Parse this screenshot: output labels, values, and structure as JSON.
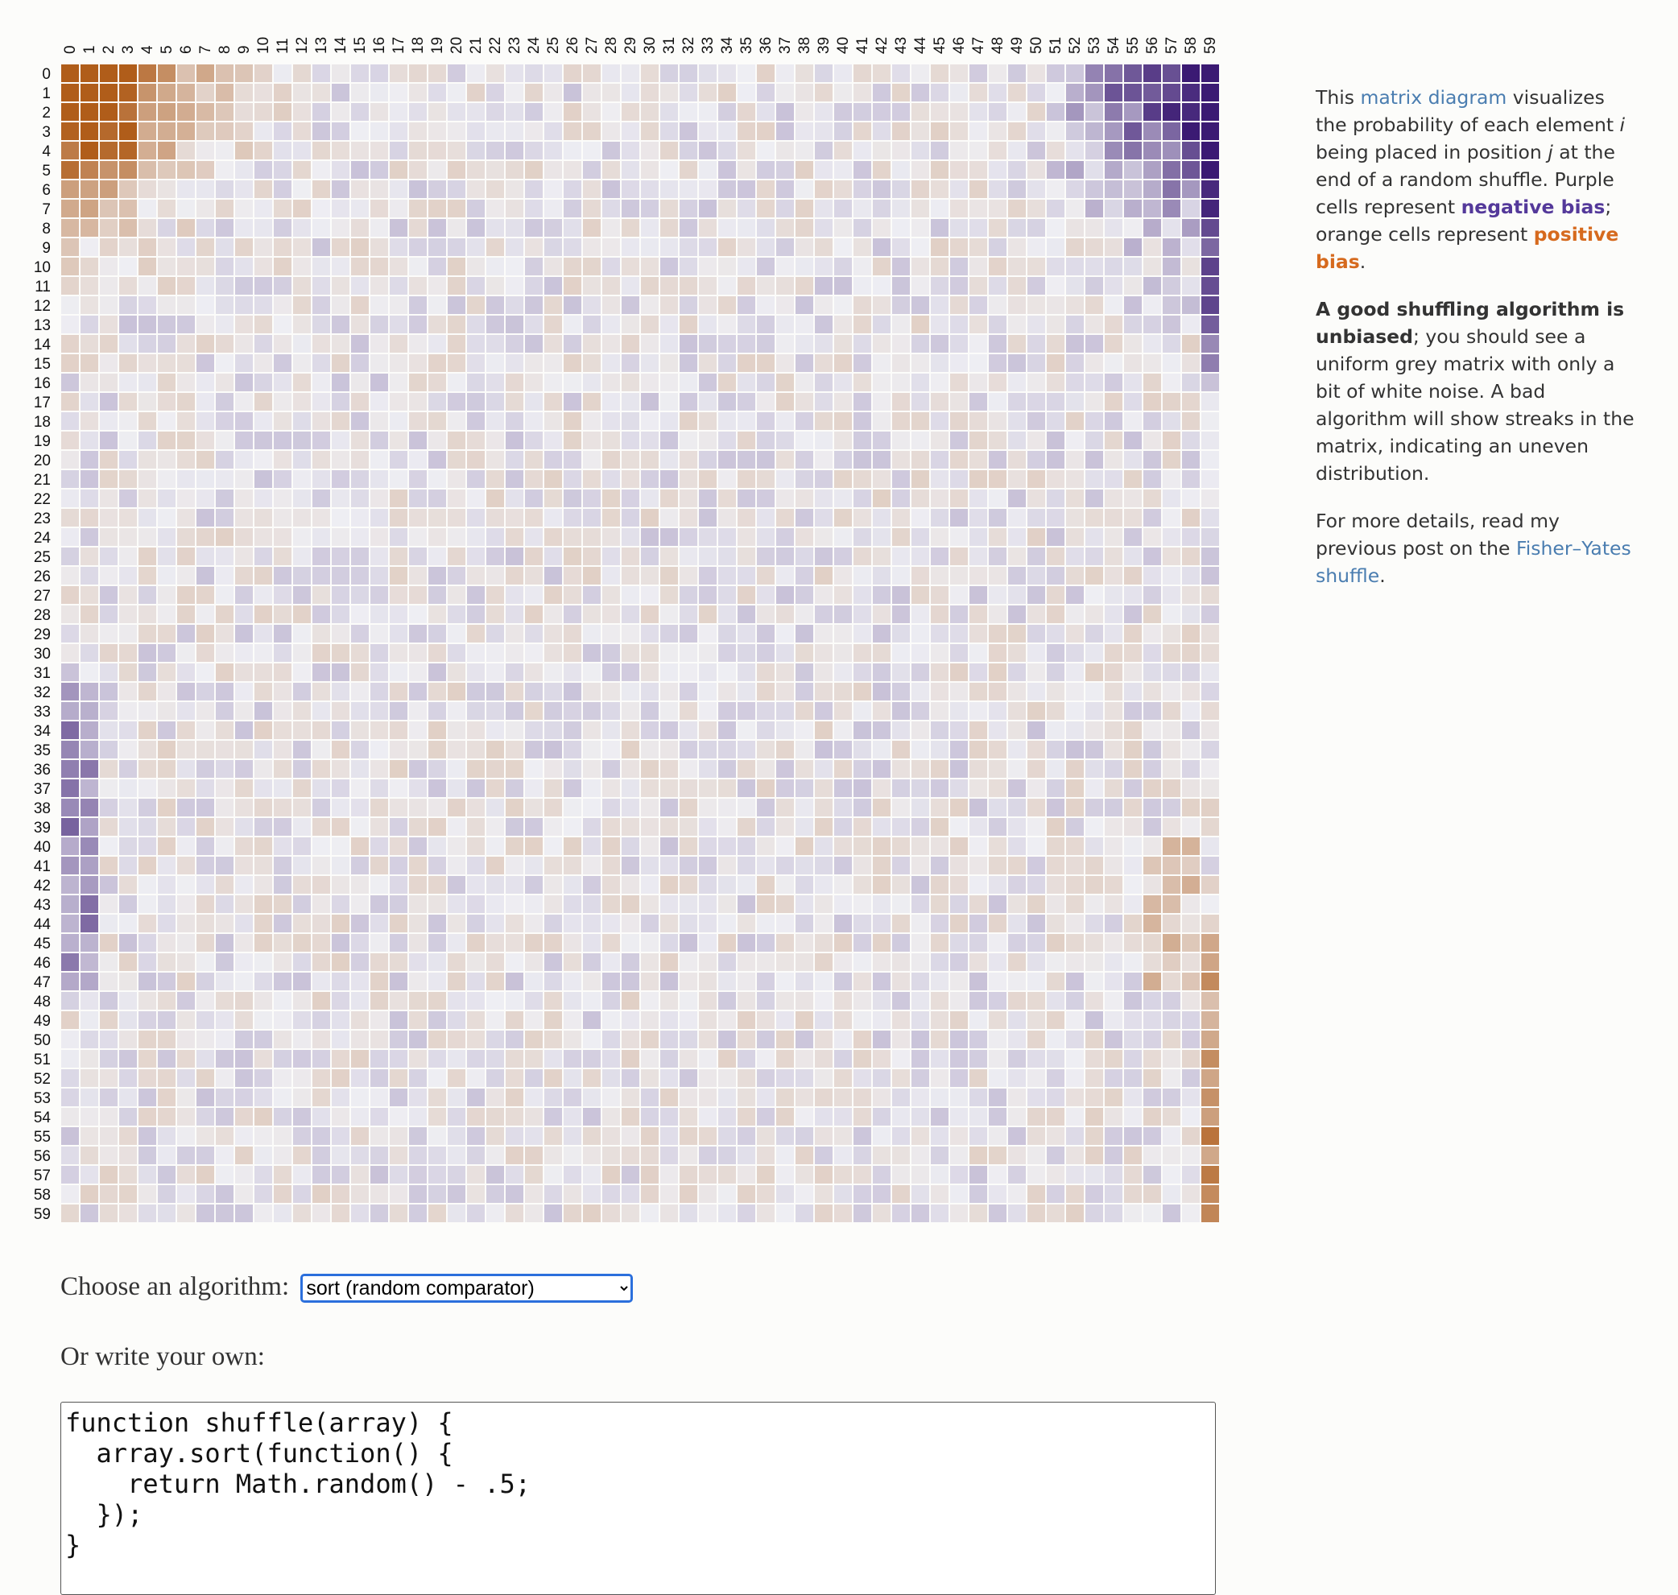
{
  "matrix": {
    "size": 60,
    "colors": {
      "negative": "#3b1a73",
      "neutral": "#eeeef3",
      "positive": "#b05d1a"
    }
  },
  "sidebar": {
    "p1": {
      "t1": "This ",
      "link": "matrix diagram",
      "t2": " visualizes the probability of each element ",
      "i": "i",
      "t3": " being placed in position ",
      "j": "j",
      "t4": " at the end of a random shuffle. Purple cells represent ",
      "neg": "negative bias",
      "t5": "; orange cells represent ",
      "pos": "positive bias",
      "t6": "."
    },
    "p2": {
      "bold": "A good shuffling algorithm is unbiased",
      "rest": "; you should see a uniform grey matrix with only a bit of white noise. A bad algorithm will show streaks in the matrix, indicating an uneven distribution."
    },
    "p3": {
      "t1": "For more details, read my previous post on the ",
      "link": "Fisher–Yates shuffle",
      "t2": "."
    }
  },
  "controls": {
    "choose_label": "Choose an algorithm:",
    "selected_algorithm": "sort (random comparator)",
    "own_label": "Or write your own:"
  },
  "code": "function shuffle(array) {\n  array.sort(function() {\n    return Math.random() - .5;\n  });\n}"
}
